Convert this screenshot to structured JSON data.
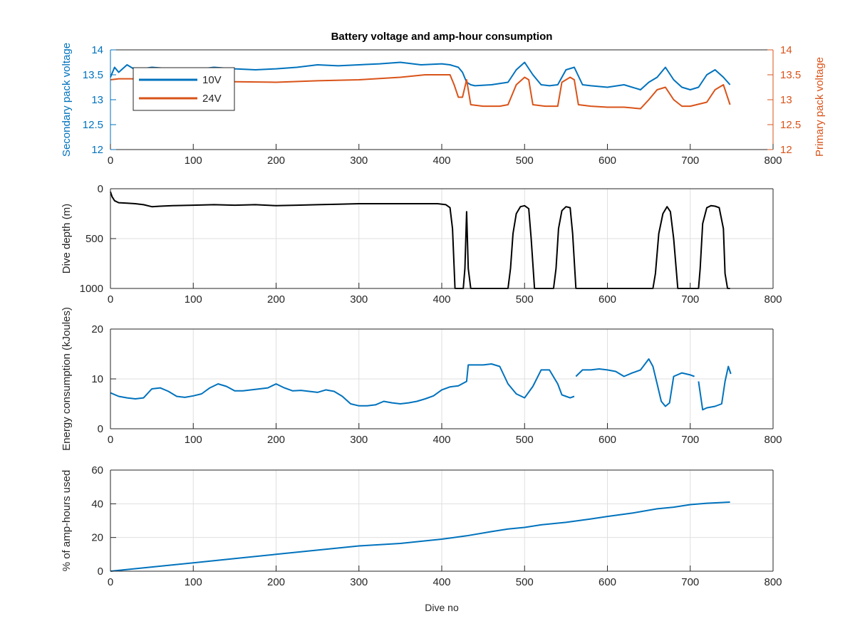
{
  "figure": {
    "title": "Battery voltage and amp-hour consumption",
    "xlabel": "Dive no"
  },
  "chart_data": [
    {
      "type": "line",
      "title": "Battery voltage and amp-hour consumption",
      "xlabel": "",
      "ylabel": "Secondary pack voltage",
      "ylabel_right": "Primary pack voltage",
      "xlim": [
        0,
        800
      ],
      "ylim": [
        12,
        14
      ],
      "ylim_right": [
        12,
        14
      ],
      "xticks": [
        "0",
        "100",
        "200",
        "300",
        "400",
        "500",
        "600",
        "700",
        "800"
      ],
      "yticks": [
        "12",
        "12.5",
        "13",
        "13.5",
        "14"
      ],
      "yticks_right": [
        "12",
        "12.5",
        "13",
        "13.5",
        "14"
      ],
      "grid": false,
      "legend": "top-left",
      "colors": {
        "left_axis": "#0072BD",
        "right_axis": "#D95319"
      },
      "series": [
        {
          "name": "10V",
          "color": "#0072BD",
          "axis": "left",
          "x": [
            0,
            5,
            10,
            20,
            30,
            50,
            75,
            100,
            125,
            150,
            175,
            200,
            225,
            250,
            275,
            300,
            325,
            350,
            375,
            400,
            410,
            420,
            425,
            430,
            435,
            440,
            460,
            480,
            490,
            500,
            510,
            520,
            530,
            540,
            550,
            560,
            570,
            580,
            600,
            620,
            640,
            650,
            660,
            670,
            680,
            690,
            700,
            710,
            720,
            730,
            740,
            748
          ],
          "y": [
            13.45,
            13.65,
            13.55,
            13.7,
            13.6,
            13.65,
            13.62,
            13.6,
            13.65,
            13.62,
            13.6,
            13.62,
            13.65,
            13.7,
            13.68,
            13.7,
            13.72,
            13.75,
            13.7,
            13.72,
            13.7,
            13.65,
            13.55,
            13.35,
            13.3,
            13.28,
            13.3,
            13.35,
            13.6,
            13.75,
            13.5,
            13.3,
            13.28,
            13.3,
            13.6,
            13.65,
            13.3,
            13.28,
            13.25,
            13.3,
            13.2,
            13.35,
            13.45,
            13.65,
            13.4,
            13.25,
            13.2,
            13.25,
            13.5,
            13.6,
            13.45,
            13.3
          ]
        },
        {
          "name": "24V",
          "color": "#D95319",
          "axis": "right",
          "x": [
            0,
            10,
            25,
            50,
            75,
            100,
            150,
            200,
            250,
            300,
            350,
            380,
            400,
            410,
            415,
            420,
            425,
            430,
            435,
            450,
            470,
            480,
            490,
            500,
            505,
            510,
            525,
            540,
            545,
            555,
            560,
            565,
            580,
            600,
            620,
            640,
            650,
            660,
            670,
            680,
            690,
            700,
            720,
            730,
            740,
            748
          ],
          "y": [
            13.4,
            13.42,
            13.42,
            13.4,
            13.38,
            13.38,
            13.36,
            13.35,
            13.38,
            13.4,
            13.45,
            13.5,
            13.5,
            13.5,
            13.3,
            13.05,
            13.05,
            13.4,
            12.9,
            12.87,
            12.87,
            12.9,
            13.3,
            13.45,
            13.4,
            12.9,
            12.87,
            12.87,
            13.35,
            13.45,
            13.4,
            12.9,
            12.87,
            12.85,
            12.85,
            12.82,
            13.0,
            13.2,
            13.25,
            13.0,
            12.87,
            12.87,
            12.95,
            13.2,
            13.3,
            12.9
          ]
        }
      ]
    },
    {
      "type": "line",
      "xlabel": "",
      "ylabel": "Dive depth (m)",
      "xlim": [
        0,
        800
      ],
      "ylim": [
        1000,
        0
      ],
      "y_reversed": true,
      "xticks": [
        "0",
        "100",
        "200",
        "300",
        "400",
        "500",
        "600",
        "700",
        "800"
      ],
      "yticks": [
        "0",
        "500",
        "1000"
      ],
      "grid": true,
      "legend": "none",
      "series": [
        {
          "color": "#000000",
          "x": [
            0,
            2,
            5,
            10,
            20,
            30,
            40,
            50,
            60,
            75,
            100,
            125,
            150,
            175,
            200,
            225,
            250,
            275,
            300,
            325,
            350,
            375,
            395,
            405,
            410,
            413,
            416,
            420,
            426,
            428,
            430,
            432,
            435,
            450,
            470,
            480,
            483,
            486,
            490,
            495,
            500,
            505,
            508,
            512,
            520,
            535,
            538,
            541,
            545,
            550,
            555,
            558,
            562,
            565,
            580,
            600,
            620,
            640,
            655,
            658,
            662,
            667,
            672,
            676,
            680,
            685,
            700,
            710,
            712,
            715,
            720,
            725,
            730,
            735,
            740,
            742,
            745,
            748
          ],
          "y": [
            30,
            80,
            120,
            140,
            145,
            150,
            160,
            180,
            175,
            170,
            165,
            160,
            165,
            160,
            170,
            165,
            160,
            155,
            150,
            150,
            150,
            150,
            150,
            160,
            190,
            400,
            1000,
            1000,
            1000,
            800,
            230,
            800,
            1000,
            1000,
            1000,
            1000,
            800,
            450,
            250,
            180,
            170,
            200,
            500,
            1000,
            1000,
            1000,
            800,
            400,
            220,
            180,
            190,
            450,
            1000,
            1000,
            1000,
            1000,
            1000,
            1000,
            1000,
            850,
            450,
            250,
            180,
            230,
            500,
            1000,
            1000,
            1000,
            800,
            350,
            190,
            170,
            175,
            190,
            400,
            850,
            1000,
            1000
          ]
        }
      ]
    },
    {
      "type": "line",
      "xlabel": "",
      "ylabel": "Energy consumption (kJoules)",
      "xlim": [
        0,
        800
      ],
      "ylim": [
        0,
        20
      ],
      "xticks": [
        "0",
        "100",
        "200",
        "300",
        "400",
        "500",
        "600",
        "700",
        "800"
      ],
      "yticks": [
        "0",
        "10",
        "20"
      ],
      "grid": true,
      "legend": "none",
      "series": [
        {
          "color": "#0072BD",
          "x": [
            0,
            10,
            20,
            30,
            40,
            50,
            60,
            70,
            80,
            90,
            100,
            110,
            120,
            130,
            140,
            150,
            160,
            170,
            180,
            190,
            200,
            210,
            220,
            230,
            240,
            250,
            260,
            270,
            280,
            290,
            300,
            310,
            320,
            330,
            340,
            350,
            360,
            370,
            380,
            390,
            400,
            410,
            420,
            430,
            432,
            440,
            450,
            460,
            470,
            480,
            490,
            500,
            510,
            520,
            530,
            540,
            545,
            550,
            555,
            560
          ],
          "y": [
            7.2,
            6.5,
            6.2,
            6.0,
            6.2,
            8.0,
            8.2,
            7.5,
            6.5,
            6.3,
            6.6,
            7.0,
            8.2,
            9.0,
            8.5,
            7.6,
            7.6,
            7.8,
            8.0,
            8.2,
            9.0,
            8.2,
            7.6,
            7.7,
            7.5,
            7.3,
            7.8,
            7.5,
            6.5,
            5.0,
            4.6,
            4.6,
            4.8,
            5.5,
            5.2,
            5.0,
            5.2,
            5.5,
            6.0,
            6.6,
            7.8,
            8.4,
            8.6,
            9.5,
            12.8,
            12.8,
            12.8,
            13.0,
            12.5,
            9.0,
            7.0,
            6.2,
            8.5,
            11.8,
            11.8,
            9.0,
            6.8,
            6.5,
            6.2,
            6.5
          ]
        },
        {
          "color": "#0072BD",
          "x": [
            562,
            570,
            580,
            590,
            600,
            610,
            620,
            630,
            640,
            650,
            655,
            660,
            665,
            670,
            675,
            680,
            690,
            700,
            705
          ],
          "y": [
            10.5,
            11.8,
            11.8,
            12.0,
            11.8,
            11.5,
            10.5,
            11.2,
            11.8,
            14.0,
            12.5,
            9.0,
            5.5,
            4.5,
            5.2,
            10.5,
            11.2,
            10.8,
            10.5
          ]
        },
        {
          "color": "#0072BD",
          "x": [
            710,
            715,
            720,
            730,
            738,
            742,
            746,
            749
          ],
          "y": [
            9.5,
            3.8,
            4.2,
            4.5,
            5.0,
            9.5,
            12.5,
            11.0
          ]
        }
      ]
    },
    {
      "type": "line",
      "xlabel": "Dive no",
      "ylabel": "% of amp-hours used",
      "xlim": [
        0,
        800
      ],
      "ylim": [
        0,
        60
      ],
      "xticks": [
        "0",
        "100",
        "200",
        "300",
        "400",
        "500",
        "600",
        "700",
        "800"
      ],
      "yticks": [
        "0",
        "20",
        "40",
        "60"
      ],
      "grid": true,
      "legend": "none",
      "series": [
        {
          "color": "#0072BD",
          "x": [
            0,
            50,
            100,
            150,
            200,
            250,
            300,
            350,
            400,
            430,
            460,
            480,
            500,
            520,
            550,
            580,
            600,
            630,
            660,
            680,
            700,
            720,
            748
          ],
          "y": [
            0,
            2.5,
            5,
            7.5,
            10,
            12.5,
            15,
            16.5,
            19,
            21,
            23.5,
            25,
            26,
            27.5,
            29,
            31,
            32.5,
            34.5,
            37,
            38,
            39.5,
            40.3,
            41
          ]
        }
      ]
    }
  ]
}
